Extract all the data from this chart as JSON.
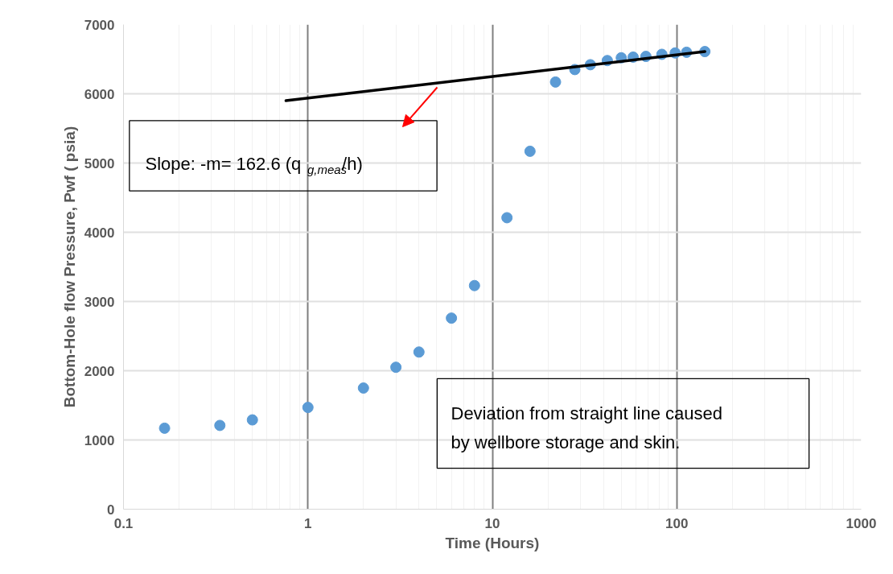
{
  "chart_data": {
    "type": "scatter",
    "xlabel": "Time (Hours)",
    "ylabel": "Bottom-Hole flow Pressure, Pwf ( psia)",
    "series": [
      {
        "color": "#5b9bd5",
        "marker": "circle",
        "x": [
          0.167,
          0.333,
          0.5,
          1,
          2,
          3,
          4,
          6,
          8,
          12,
          16,
          22,
          28,
          34,
          42,
          50,
          58,
          68,
          83,
          98,
          113,
          142
        ],
        "values": [
          1170,
          1210,
          1290,
          1470,
          1750,
          2050,
          2270,
          2760,
          3230,
          4210,
          5170,
          6170,
          6350,
          6420,
          6480,
          6520,
          6530,
          6540,
          6570,
          6590,
          6600,
          6610
        ]
      },
      {
        "type": "line",
        "marker": "none",
        "color": "#000000",
        "x": [
          0.76,
          142
        ],
        "values": [
          5900,
          6610
        ]
      }
    ],
    "log": "x",
    "xlim": [
      0.1,
      1000
    ],
    "xticks": [
      0.1,
      1,
      10,
      100,
      1000
    ],
    "ylim": [
      0,
      7000
    ],
    "yticks": [
      0,
      1000,
      2000,
      3000,
      4000,
      5000,
      6000,
      7000
    ],
    "grid": true,
    "annotations": [
      "Slope: -m= 162.6 (q$_{g,meas}$/h)",
      "Deviation from straight line caused\nby wellbore storage and skin."
    ]
  }
}
